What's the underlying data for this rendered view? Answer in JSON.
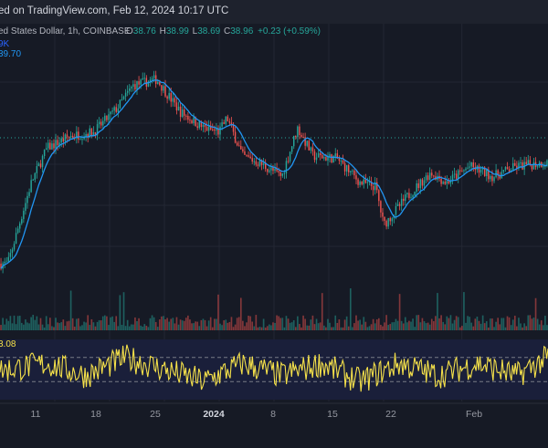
{
  "header": {
    "published": "ed on TradingView.com, Feb 12, 2024 10:17 UTC"
  },
  "legend": {
    "symbol": "ed States Dollar, 1h, COINBASE",
    "open_label": "O",
    "open": "38.76",
    "high_label": "H",
    "high": "38.99",
    "low_label": "L",
    "low": "38.69",
    "close_label": "C",
    "close": "38.96",
    "change": "+0.23 (+0.59%)",
    "ma_value": "9K",
    "ma2_value": "39.70",
    "rsi_value": "3.08"
  },
  "x_axis": {
    "ticks": [
      "11",
      "18",
      "25",
      "2024",
      "8",
      "15",
      "22",
      "Feb"
    ]
  },
  "colors": {
    "background": "#161a25",
    "up": "#26a69a",
    "down": "#ef5350",
    "ma": "#2196f3",
    "rsi": "#f5e14a",
    "rsi_band": "#1a1f3a",
    "current_price_line": "#26a69a"
  },
  "chart_data": {
    "type": "candlestick",
    "title": "",
    "timeframe": "1h",
    "exchange": "COINBASE",
    "last_bar": {
      "open": 38.76,
      "high": 38.99,
      "low": 38.69,
      "close": 38.96,
      "change": 0.23,
      "change_pct": 0.59
    },
    "price_path": [
      {
        "date": "2023-12-05",
        "price": 0.05
      },
      {
        "date": "2023-12-08",
        "price": 0.45
      },
      {
        "date": "2023-12-10",
        "price": 0.62
      },
      {
        "date": "2023-12-13",
        "price": 0.68
      },
      {
        "date": "2023-12-16",
        "price": 0.7
      },
      {
        "date": "2023-12-19",
        "price": 0.82
      },
      {
        "date": "2023-12-21",
        "price": 0.93
      },
      {
        "date": "2023-12-24",
        "price": 0.96
      },
      {
        "date": "2023-12-27",
        "price": 0.8
      },
      {
        "date": "2023-12-30",
        "price": 0.72
      },
      {
        "date": "2024-01-01",
        "price": 0.7
      },
      {
        "date": "2024-01-02",
        "price": 0.77
      },
      {
        "date": "2024-01-04",
        "price": 0.58
      },
      {
        "date": "2024-01-06",
        "price": 0.55
      },
      {
        "date": "2024-01-09",
        "price": 0.48
      },
      {
        "date": "2024-01-11",
        "price": 0.72
      },
      {
        "date": "2024-01-13",
        "price": 0.58
      },
      {
        "date": "2024-01-16",
        "price": 0.57
      },
      {
        "date": "2024-01-19",
        "price": 0.45
      },
      {
        "date": "2024-01-21",
        "price": 0.43
      },
      {
        "date": "2024-01-22",
        "price": 0.24
      },
      {
        "date": "2024-01-25",
        "price": 0.38
      },
      {
        "date": "2024-01-28",
        "price": 0.5
      },
      {
        "date": "2024-01-30",
        "price": 0.45
      },
      {
        "date": "2024-02-02",
        "price": 0.53
      },
      {
        "date": "2024-02-05",
        "price": 0.48
      },
      {
        "date": "2024-02-08",
        "price": 0.53
      },
      {
        "date": "2024-02-12",
        "price": 0.55
      }
    ],
    "rsi_path": [
      {
        "date": "2023-12-05",
        "rsi": 0.5
      },
      {
        "date": "2023-12-10",
        "rsi": 0.6
      },
      {
        "date": "2023-12-15",
        "rsi": 0.4
      },
      {
        "date": "2023-12-20",
        "rsi": 0.7
      },
      {
        "date": "2023-12-25",
        "rsi": 0.5
      },
      {
        "date": "2023-12-30",
        "rsi": 0.3
      },
      {
        "date": "2024-01-04",
        "rsi": 0.6
      },
      {
        "date": "2024-01-09",
        "rsi": 0.4
      },
      {
        "date": "2024-01-14",
        "rsi": 0.6
      },
      {
        "date": "2024-01-19",
        "rsi": 0.3
      },
      {
        "date": "2024-01-24",
        "rsi": 0.6
      },
      {
        "date": "2024-01-29",
        "rsi": 0.4
      },
      {
        "date": "2024-02-03",
        "rsi": 0.6
      },
      {
        "date": "2024-02-08",
        "rsi": 0.4
      },
      {
        "date": "2024-02-12",
        "rsi": 0.7
      }
    ],
    "x_start": "2023-12-04",
    "x_end": "2024-02-12",
    "x_tick_dates": [
      "2023-12-11",
      "2023-12-18",
      "2023-12-25",
      "2024-01-01",
      "2024-01-08",
      "2024-01-15",
      "2024-01-22",
      "2024-02-01"
    ],
    "price_scale": "relative",
    "rsi_upper": 0.7,
    "rsi_lower": 0.3,
    "grid": true
  }
}
